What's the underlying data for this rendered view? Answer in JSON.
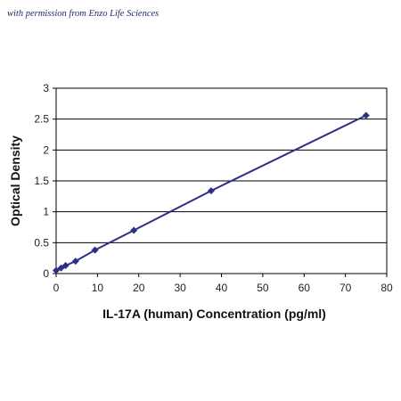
{
  "credit": "with permission from Enzo Life Sciences",
  "colors": {
    "series": "#2e2f86",
    "grid": "#000000",
    "background": "#ffffff"
  },
  "chart_data": {
    "type": "line",
    "title": "",
    "xlabel": "IL-17A (human) Concentration (pg/ml)",
    "ylabel": "Optical Density",
    "xlim": [
      0,
      80
    ],
    "ylim": [
      0,
      3
    ],
    "xticks": [
      0,
      10,
      20,
      30,
      40,
      50,
      60,
      70,
      80
    ],
    "yticks": [
      0,
      0.5,
      1,
      1.5,
      2,
      2.5,
      3
    ],
    "xtick_labels": [
      "0",
      "10",
      "20",
      "30",
      "40",
      "50",
      "60",
      "70",
      "80"
    ],
    "ytick_labels": [
      "0",
      "0.5",
      "1",
      "1.5",
      "2",
      "2.5",
      "3"
    ],
    "grid": "horizontal",
    "legend": "none",
    "marker": "diamond",
    "series": [
      {
        "x": [
          0,
          1.2,
          2.3,
          4.7,
          9.4,
          18.8,
          37.5,
          75
        ],
        "y": [
          0.05,
          0.09,
          0.13,
          0.2,
          0.38,
          0.7,
          1.34,
          2.56
        ]
      }
    ]
  }
}
